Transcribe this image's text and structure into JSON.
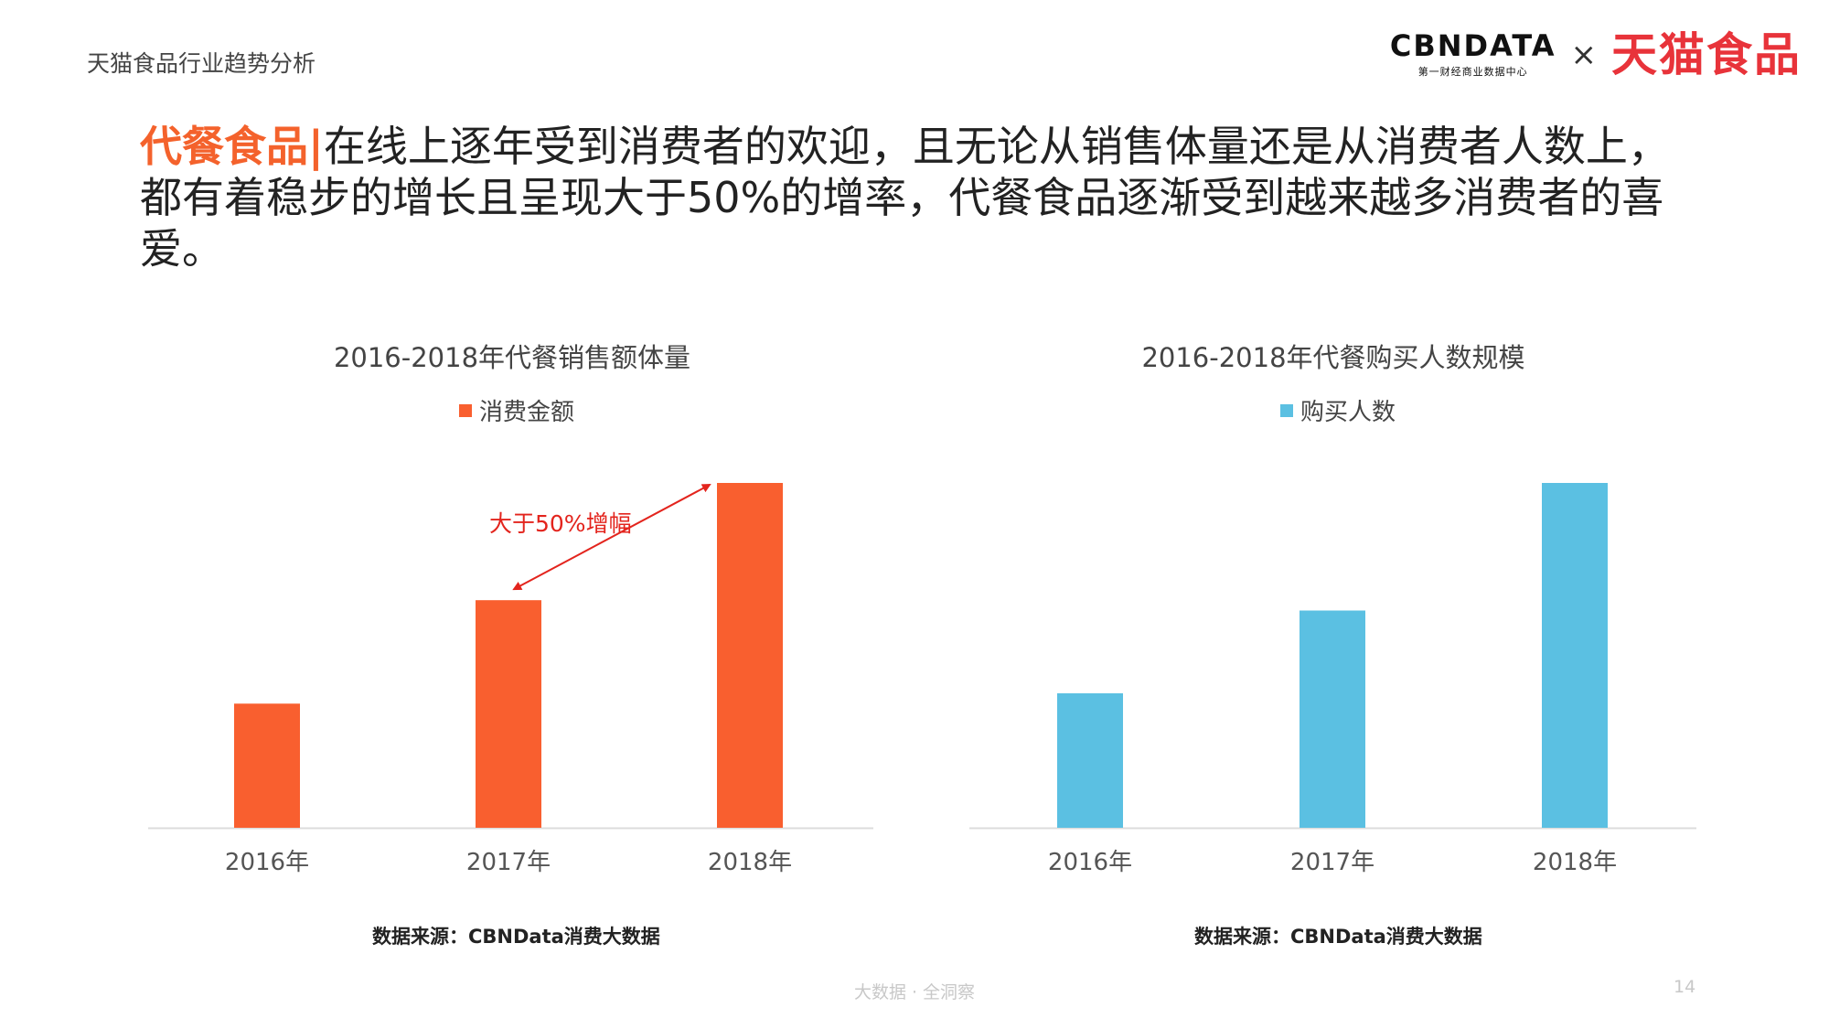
{
  "header": {
    "report_title": "天猫食品行业趋势分析"
  },
  "logos": {
    "cbndata_word": "CBNDATA",
    "cbndata_sub": "第一财经商业数据中心",
    "separator": "×",
    "tmall_food": "天猫食品"
  },
  "headline": {
    "keyword": "代餐食品",
    "bar": "|",
    "text": "在线上逐年受到消费者的欢迎，且无论从销售体量还是从消费者人数上，都有着稳步的增长且呈现大于50%的增率，代餐食品逐渐受到越来越多消费者的喜爱。"
  },
  "colors": {
    "sales": "#f95f2f",
    "buyers": "#5bc0e2",
    "annotation": "#e3241d",
    "axis": "#dcdcdc"
  },
  "chart_data": [
    {
      "type": "bar",
      "title": "2016-2018年代餐销售额体量",
      "categories": [
        "2016年",
        "2017年",
        "2018年"
      ],
      "series": [
        {
          "name": "消费金额",
          "values": [
            36,
            66,
            100
          ]
        }
      ],
      "ylim": [
        0,
        100
      ],
      "grid": false,
      "legend": "top",
      "annotation": {
        "text": "大于50%增幅",
        "from": "2017年",
        "to": "2018年"
      },
      "source": "数据来源：CBNData消费大数据"
    },
    {
      "type": "bar",
      "title": "2016-2018年代餐购买人数规模",
      "categories": [
        "2016年",
        "2017年",
        "2018年"
      ],
      "series": [
        {
          "name": "购买人数",
          "values": [
            39,
            63,
            100
          ]
        }
      ],
      "ylim": [
        0,
        100
      ],
      "grid": false,
      "legend": "top",
      "source": "数据来源：CBNData消费大数据"
    }
  ],
  "footer": {
    "slogan": "大数据 · 全洞察",
    "page_number": "14"
  }
}
